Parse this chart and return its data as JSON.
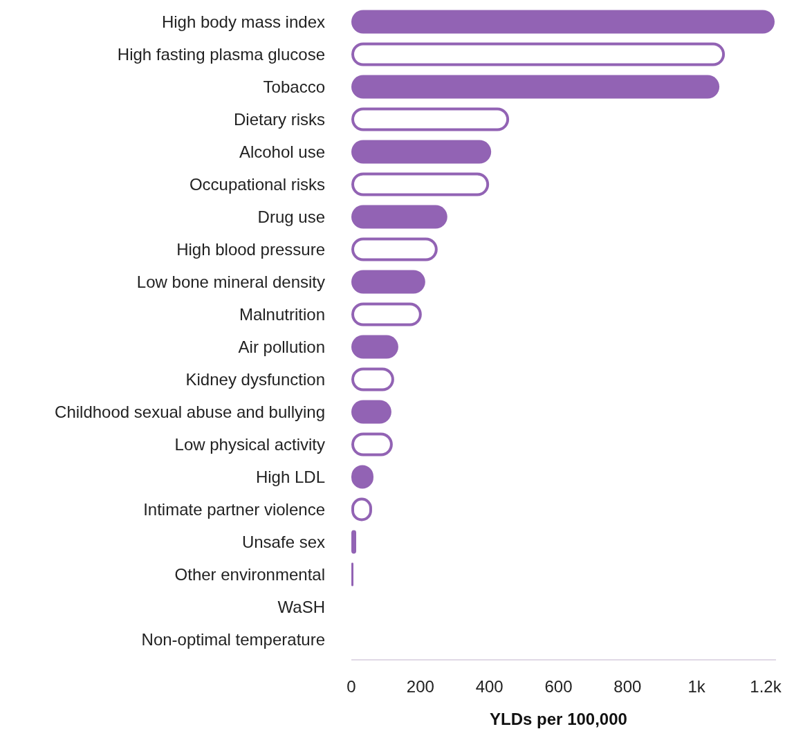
{
  "chart_data": {
    "type": "bar",
    "orientation": "horizontal",
    "xlabel": "YLDs per 100,000",
    "categories": [
      "High body mass index",
      "High fasting plasma glucose",
      "Tobacco",
      "Dietary risks",
      "Alcohol use",
      "Occupational risks",
      "Drug use",
      "High blood pressure",
      "Low bone mineral density",
      "Malnutrition",
      "Air pollution",
      "Kidney dysfunction",
      "Childhood sexual abuse and bullying",
      "Low physical activity",
      "High LDL",
      "Intimate partner violence",
      "Unsafe sex",
      "Other environmental",
      "WaSH",
      "Non-optimal temperature"
    ],
    "values": [
      1226,
      1082,
      1066,
      457,
      405,
      399,
      278,
      250,
      214,
      204,
      136,
      124,
      116,
      120,
      64,
      60,
      14,
      6,
      0,
      0
    ],
    "color": "#9263b4",
    "xlim": [
      0,
      1230
    ],
    "xticks": [
      0,
      200,
      400,
      600,
      800,
      {
        "value": 1000,
        "label": "1k"
      },
      {
        "value": 1200,
        "label": "1.2k"
      }
    ],
    "grid": false
  }
}
